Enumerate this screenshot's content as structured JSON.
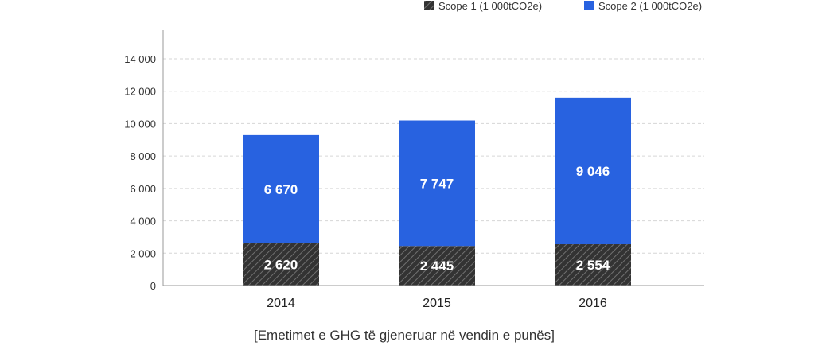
{
  "caption": "[Emetimet e GHG të gjeneruar në vendin e punës]",
  "colors": {
    "scope1": "#333333",
    "scope1_hatch": "#6a6a6a",
    "scope2": "#2862e0",
    "grid": "#d6d6d6",
    "axis": "#999999"
  },
  "chart_data": {
    "type": "bar",
    "stacked": true,
    "categories": [
      "2014",
      "2015",
      "2016"
    ],
    "series": [
      {
        "name": "Scope 1 (1 000tCO2e)",
        "values": [
          2620,
          2445,
          2554
        ],
        "labels": [
          "2 620",
          "2 445",
          "2 554"
        ]
      },
      {
        "name": "Scope 2 (1 000tCO2e)",
        "values": [
          6670,
          7747,
          9046
        ],
        "labels": [
          "6 670",
          "7 747",
          "9 046"
        ]
      }
    ],
    "ylim": [
      0,
      15000
    ],
    "yticks": [
      0,
      2000,
      4000,
      6000,
      8000,
      10000,
      12000,
      14000
    ],
    "ytick_labels": [
      "0",
      "2 000",
      "4 000",
      "6 000",
      "8 000",
      "10 000",
      "12 000",
      "14 000"
    ],
    "grid": true,
    "legend": "top-right"
  }
}
